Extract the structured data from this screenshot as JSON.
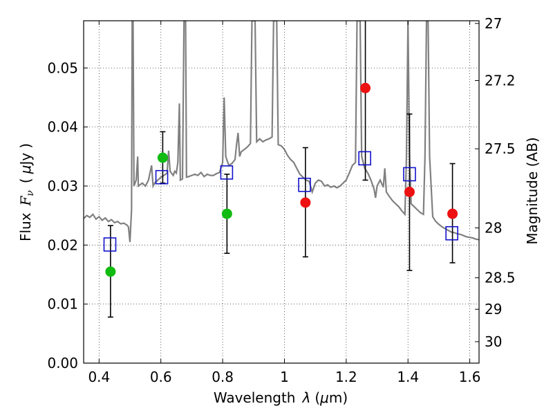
{
  "chart_data": {
    "type": "scatter",
    "title": "",
    "xlabel_parts": [
      "Wavelength",
      "λ",
      "(",
      "μ",
      "m)"
    ],
    "ylabel_parts": [
      "Flux",
      "F",
      "ν",
      "(",
      "μ",
      "Jy",
      ")"
    ],
    "y2label": "Magnitude (AB)",
    "xlim": [
      0.35,
      1.63
    ],
    "ylim": [
      0.0,
      0.058
    ],
    "grid": true,
    "x_ticks": [
      {
        "value": 0.4,
        "label": "0.4"
      },
      {
        "value": 0.6,
        "label": "0.6"
      },
      {
        "value": 0.8,
        "label": "0.8"
      },
      {
        "value": 1.0,
        "label": "1"
      },
      {
        "value": 1.2,
        "label": "1.2"
      },
      {
        "value": 1.4,
        "label": "1.4"
      },
      {
        "value": 1.6,
        "label": "1.6"
      }
    ],
    "y_ticks": [
      {
        "value": 0.0,
        "label": "0.00"
      },
      {
        "value": 0.01,
        "label": "0.01"
      },
      {
        "value": 0.02,
        "label": "0.02"
      },
      {
        "value": 0.03,
        "label": "0.03"
      },
      {
        "value": 0.04,
        "label": "0.04"
      },
      {
        "value": 0.05,
        "label": "0.05"
      }
    ],
    "y2_ticks": [
      {
        "value": 27,
        "label": "27"
      },
      {
        "value": 27.2,
        "label": "27.2"
      },
      {
        "value": 27.5,
        "label": "27.5"
      },
      {
        "value": 28,
        "label": "28"
      },
      {
        "value": 28.5,
        "label": "28.5"
      },
      {
        "value": 29,
        "label": "29"
      },
      {
        "value": 30,
        "label": "30"
      }
    ],
    "colors": {
      "model": "#808080",
      "observed_green": "#11bb11",
      "observed_red": "#ee1111",
      "model_box": "#1111cc",
      "errorbar": "#000000"
    },
    "model_spectrum": [
      [
        0.35,
        0.0245
      ],
      [
        0.36,
        0.025
      ],
      [
        0.37,
        0.0247
      ],
      [
        0.38,
        0.0252
      ],
      [
        0.39,
        0.0244
      ],
      [
        0.4,
        0.0248
      ],
      [
        0.41,
        0.0242
      ],
      [
        0.42,
        0.0246
      ],
      [
        0.43,
        0.024
      ],
      [
        0.44,
        0.0243
      ],
      [
        0.45,
        0.0238
      ],
      [
        0.46,
        0.024
      ],
      [
        0.47,
        0.0236
      ],
      [
        0.48,
        0.0237
      ],
      [
        0.49,
        0.0234
      ],
      [
        0.495,
        0.0231
      ],
      [
        0.5,
        0.0205
      ],
      [
        0.505,
        0.026
      ],
      [
        0.507,
        0.058
      ],
      [
        0.51,
        0.058
      ],
      [
        0.513,
        0.03
      ],
      [
        0.52,
        0.031
      ],
      [
        0.525,
        0.035
      ],
      [
        0.527,
        0.03
      ],
      [
        0.54,
        0.0305
      ],
      [
        0.55,
        0.03
      ],
      [
        0.56,
        0.031
      ],
      [
        0.57,
        0.0335
      ],
      [
        0.575,
        0.03
      ],
      [
        0.58,
        0.0305
      ],
      [
        0.59,
        0.031
      ],
      [
        0.6,
        0.0315
      ],
      [
        0.61,
        0.0318
      ],
      [
        0.62,
        0.0322
      ],
      [
        0.625,
        0.036
      ],
      [
        0.63,
        0.0325
      ],
      [
        0.64,
        0.0318
      ],
      [
        0.645,
        0.0325
      ],
      [
        0.65,
        0.0322
      ],
      [
        0.655,
        0.034
      ],
      [
        0.66,
        0.044
      ],
      [
        0.663,
        0.031
      ],
      [
        0.67,
        0.0312
      ],
      [
        0.675,
        0.058
      ],
      [
        0.68,
        0.058
      ],
      [
        0.683,
        0.0315
      ],
      [
        0.69,
        0.0316
      ],
      [
        0.7,
        0.0318
      ],
      [
        0.71,
        0.032
      ],
      [
        0.72,
        0.0318
      ],
      [
        0.73,
        0.0323
      ],
      [
        0.74,
        0.0316
      ],
      [
        0.75,
        0.032
      ],
      [
        0.76,
        0.0318
      ],
      [
        0.77,
        0.0318
      ],
      [
        0.78,
        0.0321
      ],
      [
        0.79,
        0.0323
      ],
      [
        0.8,
        0.034
      ],
      [
        0.805,
        0.045
      ],
      [
        0.81,
        0.035
      ],
      [
        0.82,
        0.0335
      ],
      [
        0.83,
        0.0338
      ],
      [
        0.84,
        0.0345
      ],
      [
        0.845,
        0.037
      ],
      [
        0.85,
        0.039
      ],
      [
        0.855,
        0.035
      ],
      [
        0.86,
        0.0358
      ],
      [
        0.87,
        0.0362
      ],
      [
        0.88,
        0.0366
      ],
      [
        0.89,
        0.0372
      ],
      [
        0.895,
        0.058
      ],
      [
        0.905,
        0.058
      ],
      [
        0.91,
        0.0375
      ],
      [
        0.92,
        0.038
      ],
      [
        0.93,
        0.0375
      ],
      [
        0.94,
        0.0378
      ],
      [
        0.95,
        0.038
      ],
      [
        0.96,
        0.0383
      ],
      [
        0.965,
        0.058
      ],
      [
        0.975,
        0.058
      ],
      [
        0.98,
        0.037
      ],
      [
        0.99,
        0.0368
      ],
      [
        1.0,
        0.0362
      ],
      [
        1.01,
        0.0352
      ],
      [
        1.02,
        0.0345
      ],
      [
        1.03,
        0.034
      ],
      [
        1.04,
        0.033
      ],
      [
        1.05,
        0.032
      ],
      [
        1.06,
        0.0315
      ],
      [
        1.07,
        0.031
      ],
      [
        1.08,
        0.0308
      ],
      [
        1.09,
        0.029
      ],
      [
        1.1,
        0.0305
      ],
      [
        1.11,
        0.031
      ],
      [
        1.12,
        0.0308
      ],
      [
        1.13,
        0.03
      ],
      [
        1.14,
        0.0302
      ],
      [
        1.15,
        0.0298
      ],
      [
        1.16,
        0.03
      ],
      [
        1.17,
        0.0297
      ],
      [
        1.18,
        0.03
      ],
      [
        1.19,
        0.0305
      ],
      [
        1.2,
        0.031
      ],
      [
        1.21,
        0.0322
      ],
      [
        1.22,
        0.0335
      ],
      [
        1.23,
        0.034
      ],
      [
        1.235,
        0.058
      ],
      [
        1.245,
        0.058
      ],
      [
        1.25,
        0.035
      ],
      [
        1.26,
        0.033
      ],
      [
        1.27,
        0.0322
      ],
      [
        1.28,
        0.031
      ],
      [
        1.29,
        0.0295
      ],
      [
        1.295,
        0.028
      ],
      [
        1.3,
        0.03
      ],
      [
        1.31,
        0.031
      ],
      [
        1.32,
        0.0298
      ],
      [
        1.325,
        0.033
      ],
      [
        1.33,
        0.029
      ],
      [
        1.34,
        0.0282
      ],
      [
        1.35,
        0.0275
      ],
      [
        1.36,
        0.027
      ],
      [
        1.37,
        0.0265
      ],
      [
        1.38,
        0.0258
      ],
      [
        1.39,
        0.0252
      ],
      [
        1.395,
        0.035
      ],
      [
        1.4,
        0.058
      ],
      [
        1.405,
        0.035
      ],
      [
        1.41,
        0.027
      ],
      [
        1.42,
        0.0265
      ],
      [
        1.43,
        0.026
      ],
      [
        1.44,
        0.0255
      ],
      [
        1.45,
        0.0252
      ],
      [
        1.455,
        0.035
      ],
      [
        1.46,
        0.058
      ],
      [
        1.465,
        0.058
      ],
      [
        1.47,
        0.035
      ],
      [
        1.48,
        0.0248
      ],
      [
        1.49,
        0.024
      ],
      [
        1.5,
        0.0235
      ],
      [
        1.51,
        0.0231
      ],
      [
        1.52,
        0.0228
      ],
      [
        1.53,
        0.0225
      ],
      [
        1.54,
        0.0222
      ],
      [
        1.55,
        0.0221
      ],
      [
        1.56,
        0.0219
      ],
      [
        1.57,
        0.0218
      ],
      [
        1.58,
        0.0216
      ],
      [
        1.59,
        0.0214
      ],
      [
        1.6,
        0.0213
      ],
      [
        1.61,
        0.0212
      ],
      [
        1.62,
        0.021
      ],
      [
        1.63,
        0.0209
      ]
    ],
    "observed": [
      {
        "x": 0.437,
        "y": 0.0155,
        "err_low": 0.0078,
        "err_high": 0.0233,
        "color": "green"
      },
      {
        "x": 0.606,
        "y": 0.0348,
        "err_low": 0.0305,
        "err_high": 0.0392,
        "color": "green"
      },
      {
        "x": 0.814,
        "y": 0.0253,
        "err_low": 0.0186,
        "err_high": 0.032,
        "color": "green"
      },
      {
        "x": 1.068,
        "y": 0.0272,
        "err_low": 0.018,
        "err_high": 0.0365,
        "color": "red"
      },
      {
        "x": 1.262,
        "y": 0.0466,
        "err_low": 0.031,
        "err_high": 0.058,
        "color": "red"
      },
      {
        "x": 1.405,
        "y": 0.029,
        "err_low": 0.0157,
        "err_high": 0.0422,
        "color": "red"
      },
      {
        "x": 1.544,
        "y": 0.0253,
        "err_low": 0.017,
        "err_high": 0.0338,
        "color": "red"
      }
    ],
    "model_photometry": [
      {
        "x": 0.435,
        "y": 0.0201
      },
      {
        "x": 0.603,
        "y": 0.0315
      },
      {
        "x": 0.813,
        "y": 0.0323
      },
      {
        "x": 1.065,
        "y": 0.0302
      },
      {
        "x": 1.26,
        "y": 0.0347
      },
      {
        "x": 1.405,
        "y": 0.032
      },
      {
        "x": 1.542,
        "y": 0.022
      }
    ]
  }
}
